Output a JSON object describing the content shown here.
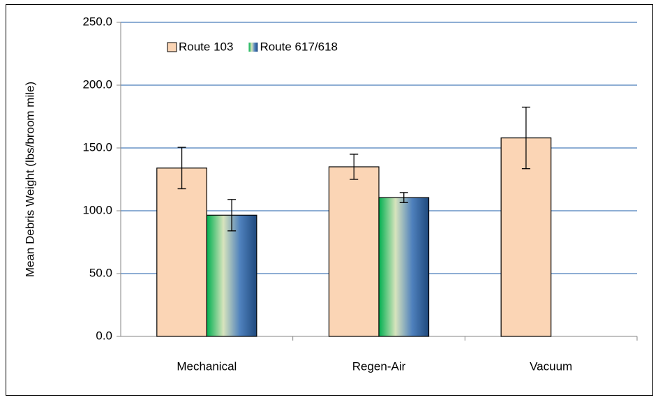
{
  "chart_data": {
    "type": "bar",
    "y_label": "Mean Debris Weight (lbs/broom mile)",
    "categories": [
      "Mechanical",
      "Regen-Air",
      "Vacuum"
    ],
    "series": [
      {
        "name": "Route 103",
        "color": "#fbd5b5",
        "values": [
          134,
          135,
          158
        ],
        "errors": [
          16.5,
          10,
          24.5
        ]
      },
      {
        "name": "Route 617/618",
        "color": [
          "#00b050",
          "#d7e4bd",
          "#4f81bd",
          "#1f497d"
        ],
        "values": [
          96.5,
          110.5,
          null
        ],
        "errors": [
          12.5,
          4,
          null
        ]
      }
    ],
    "ylim": [
      0,
      250
    ],
    "yticks": [
      {
        "value": 0,
        "label": "0.0"
      },
      {
        "value": 50,
        "label": "50.0"
      },
      {
        "value": 100,
        "label": "100.0"
      },
      {
        "value": 150,
        "label": "150.0"
      },
      {
        "value": 200,
        "label": "200.0"
      },
      {
        "value": 250,
        "label": "250.0"
      }
    ],
    "grid": true,
    "legend": "top-left"
  }
}
